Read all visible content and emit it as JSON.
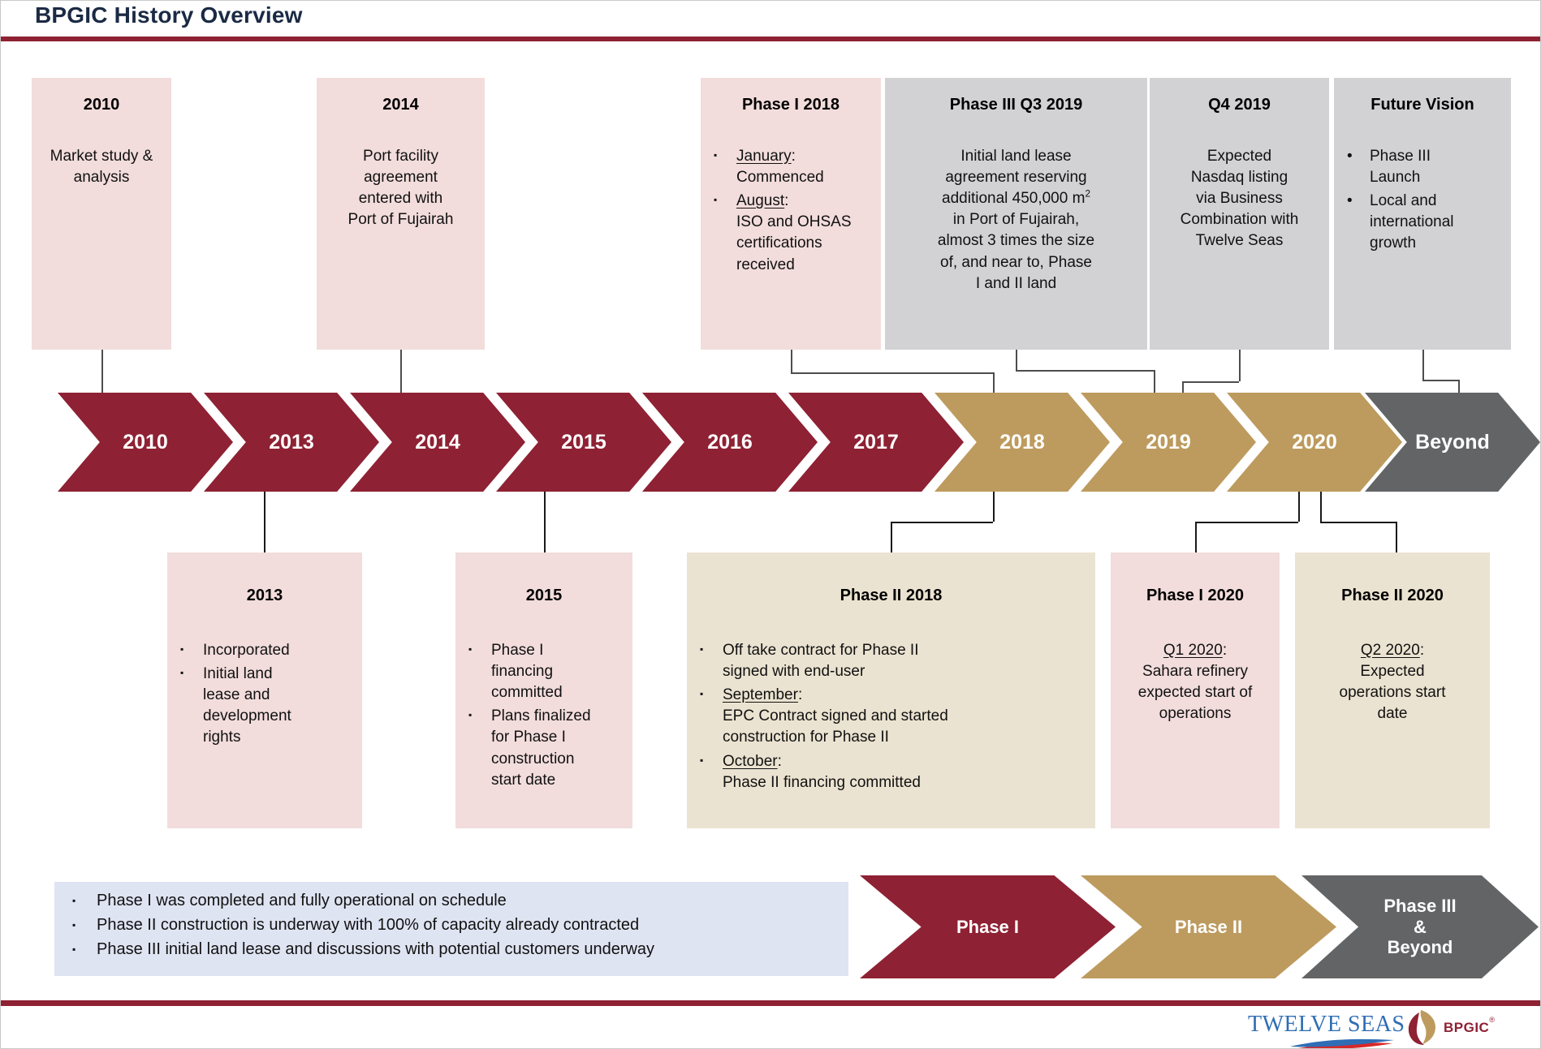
{
  "title": "BPGIC History Overview",
  "colors": {
    "maroon": "#8e2133",
    "gold": "#bd9b5e",
    "gray": "#636466",
    "navy": "#1b2a44",
    "pink_box": "#f2dddc",
    "gray_box": "#d2d2d4",
    "beige_box": "#ebe3d1",
    "summary_bg": "#dfe4f2",
    "connector_top": "#4d4d4d",
    "connector_bottom": "#1a1a1a",
    "twelve_seas_blue": "#2f6db5",
    "twelve_seas_red": "#d62929"
  },
  "top_boxes": [
    {
      "key": "y2010",
      "style": "pink",
      "title": "2010",
      "content": {
        "type": "paragraph",
        "segments": [
          {
            "t": "Market study &\nanalysis"
          }
        ]
      }
    },
    {
      "key": "y2014",
      "style": "pink",
      "title": "2014",
      "content": {
        "type": "paragraph",
        "segments": [
          {
            "t": "Port facility\nagreement\nentered with\nPort of Fujairah"
          }
        ]
      }
    },
    {
      "key": "phase1_2018",
      "style": "pink",
      "title": "Phase I 2018",
      "content": {
        "type": "bullets",
        "marker": "square",
        "items": [
          [
            {
              "t": "January",
              "u": true
            },
            {
              "t": ":\nCommenced"
            }
          ],
          [
            {
              "t": "August",
              "u": true
            },
            {
              "t": ":\nISO and OHSAS certifications received"
            }
          ]
        ]
      }
    },
    {
      "key": "phase3_q3_2019",
      "style": "grayb",
      "title": "Phase III Q3 2019",
      "content": {
        "type": "paragraph",
        "segments": [
          {
            "t": "Initial land lease\nagreement reserving\nadditional 450,000 m"
          },
          {
            "t": "2",
            "sup": true
          },
          {
            "t": "\nin Port of Fujairah,\nalmost 3 times  the size\nof,  and near to, Phase\nI and II land"
          }
        ]
      }
    },
    {
      "key": "q4_2019",
      "style": "grayb",
      "title": "Q4 2019",
      "content": {
        "type": "paragraph",
        "segments": [
          {
            "t": "Expected\nNasdaq listing\nvia Business\nCombination with\nTwelve Seas"
          }
        ]
      }
    },
    {
      "key": "future_vision",
      "style": "grayb",
      "title": "Future Vision",
      "content": {
        "type": "bullets",
        "marker": "round",
        "items": [
          [
            {
              "t": "Phase III\nLaunch"
            }
          ],
          [
            {
              "t": "Local and\ninternational\ngrowth"
            }
          ]
        ]
      }
    }
  ],
  "timeline": [
    {
      "label": "2010",
      "color": "maroon"
    },
    {
      "label": "2013",
      "color": "maroon"
    },
    {
      "label": "2014",
      "color": "maroon"
    },
    {
      "label": "2015",
      "color": "maroon"
    },
    {
      "label": "2016",
      "color": "maroon"
    },
    {
      "label": "2017",
      "color": "maroon"
    },
    {
      "label": "2018",
      "color": "gold"
    },
    {
      "label": "2019",
      "color": "gold"
    },
    {
      "label": "2020",
      "color": "gold"
    },
    {
      "label": "Beyond",
      "color": "gray"
    }
  ],
  "bottom_boxes": [
    {
      "key": "y2013",
      "style": "pink",
      "title": "2013",
      "content": {
        "type": "bullets",
        "marker": "square",
        "items": [
          [
            {
              "t": "Incorporated"
            }
          ],
          [
            {
              "t": "Initial land\nlease and\ndevelopment\nrights"
            }
          ]
        ]
      }
    },
    {
      "key": "y2015",
      "style": "pink",
      "title": "2015",
      "content": {
        "type": "bullets",
        "marker": "square",
        "items": [
          [
            {
              "t": "Phase I\nfinancing\ncommitted"
            }
          ],
          [
            {
              "t": "Plans finalized\nfor Phase I\nconstruction\nstart date"
            }
          ]
        ]
      }
    },
    {
      "key": "phase2_2018",
      "style": "beige",
      "title": "Phase II 2018",
      "content": {
        "type": "bullets",
        "marker": "square",
        "items": [
          [
            {
              "t": "Off take contract for Phase II\nsigned with end-user"
            }
          ],
          [
            {
              "t": "September",
              "u": true
            },
            {
              "t": ":\nEPC Contract signed and started\nconstruction for Phase II"
            }
          ],
          [
            {
              "t": "October",
              "u": true
            },
            {
              "t": ":\nPhase II financing committed"
            }
          ]
        ]
      }
    },
    {
      "key": "phase1_2020",
      "style": "pink",
      "title": "Phase I 2020",
      "content": {
        "type": "paragraph",
        "segments": [
          {
            "t": "Q1 2020",
            "u": true
          },
          {
            "t": ":\nSahara refinery\nexpected start of\noperations"
          }
        ]
      }
    },
    {
      "key": "phase2_2020",
      "style": "beige",
      "title": "Phase II 2020",
      "content": {
        "type": "paragraph",
        "segments": [
          {
            "t": "Q2 2020",
            "u": true
          },
          {
            "t": ":\nExpected\noperations start\ndate"
          }
        ]
      }
    }
  ],
  "summary": {
    "bullets": [
      "Phase I was completed and fully operational on schedule",
      "Phase II construction is underway with 100% of capacity already contracted",
      "Phase III initial land lease and discussions with potential customers underway"
    ]
  },
  "phase_arrows": [
    {
      "label": "Phase I",
      "color": "maroon"
    },
    {
      "label": "Phase II",
      "color": "gold"
    },
    {
      "label": "Phase III\n&\nBeyond",
      "color": "gray"
    }
  ],
  "footer": {
    "twelve_seas": "TWELVE SEAS",
    "bpgic": "BPGIC",
    "bpgic_mark": "®"
  }
}
